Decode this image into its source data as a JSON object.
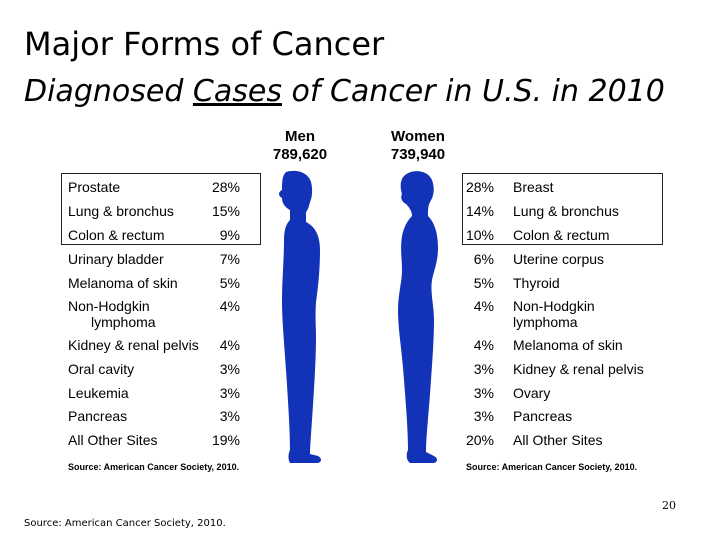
{
  "slide": {
    "title": "Major Forms of Cancer",
    "subtitle_pre": "Diagnosed ",
    "subtitle_underlined": "Cases",
    "subtitle_post": " of Cancer in U.S. in 2010",
    "page_number": "20",
    "bottom_source": "Source: American Cancer Society, 2010."
  },
  "chart_data": {
    "type": "table",
    "men": {
      "label": "Men",
      "total": "789,620",
      "sites": [
        {
          "site": "Prostate",
          "percent": "28%",
          "value": 28
        },
        {
          "site": "Lung & bronchus",
          "percent": "15%",
          "value": 15
        },
        {
          "site": "Colon & rectum",
          "percent": "9%",
          "value": 9
        },
        {
          "site": "Urinary bladder",
          "percent": "7%",
          "value": 7
        },
        {
          "site": "Melanoma of skin",
          "percent": "5%",
          "value": 5
        },
        {
          "site": "Non-Hodgkin lymphoma",
          "percent": "4%",
          "value": 4,
          "line1": "Non-Hodgkin",
          "line2": "lymphoma"
        },
        {
          "site": "Kidney & renal pelvis",
          "percent": "4%",
          "value": 4
        },
        {
          "site": "Oral cavity",
          "percent": "3%",
          "value": 3
        },
        {
          "site": "Leukemia",
          "percent": "3%",
          "value": 3
        },
        {
          "site": "Pancreas",
          "percent": "3%",
          "value": 3
        },
        {
          "site": "All Other Sites",
          "percent": "19%",
          "value": 19
        }
      ],
      "source": "Source: American Cancer Society, 2010."
    },
    "women": {
      "label": "Women",
      "total": "739,940",
      "sites": [
        {
          "site": "Breast",
          "percent": "28%",
          "value": 28
        },
        {
          "site": "Lung & bronchus",
          "percent": "14%",
          "value": 14
        },
        {
          "site": "Colon & rectum",
          "percent": "10%",
          "value": 10
        },
        {
          "site": "Uterine corpus",
          "percent": "6%",
          "value": 6
        },
        {
          "site": "Thyroid",
          "percent": "5%",
          "value": 5
        },
        {
          "site": "Non-Hodgkin lymphoma",
          "percent": "4%",
          "value": 4,
          "line1": "Non-Hodgkin",
          "line2": "lymphoma"
        },
        {
          "site": "Melanoma of skin",
          "percent": "4%",
          "value": 4
        },
        {
          "site": "Kidney & renal pelvis",
          "percent": "3%",
          "value": 3
        },
        {
          "site": "Ovary",
          "percent": "3%",
          "value": 3
        },
        {
          "site": "Pancreas",
          "percent": "3%",
          "value": 3
        },
        {
          "site": "All Other Sites",
          "percent": "20%",
          "value": 20
        }
      ],
      "source": "Source: American Cancer Society, 2010."
    },
    "highlighted_top": 3,
    "figure_color": "#1232b8"
  }
}
